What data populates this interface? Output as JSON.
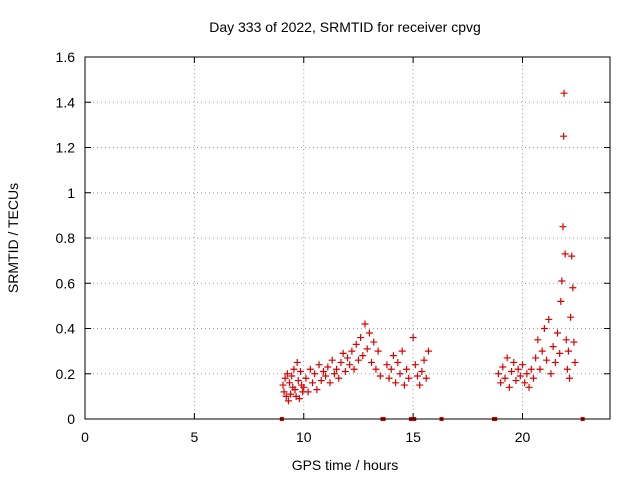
{
  "chart_data": {
    "type": "scatter",
    "title": "Day 333 of 2022, SRMTID for receiver cpvg",
    "xlabel": "GPS time / hours",
    "ylabel": "SRMTID / TECUs",
    "xlim": [
      0,
      24
    ],
    "ylim": [
      0,
      1.6
    ],
    "xticks": [
      0,
      5,
      10,
      15,
      20
    ],
    "yticks": [
      0,
      0.2,
      0.4,
      0.6,
      0.8,
      1,
      1.2,
      1.4,
      1.6
    ],
    "ytick_labels": [
      "0",
      "0.2",
      "0.4",
      "0.6",
      "0.8",
      "1",
      "1.2",
      "1.4",
      "1.6"
    ],
    "grid": true,
    "marker": "+",
    "series": [
      {
        "name": "SRMTID",
        "color": "#dd0000",
        "points": [
          [
            9.0,
            0.0
          ],
          [
            9.05,
            0.15
          ],
          [
            9.1,
            0.12
          ],
          [
            9.15,
            0.18
          ],
          [
            9.2,
            0.1
          ],
          [
            9.25,
            0.2
          ],
          [
            9.3,
            0.08
          ],
          [
            9.35,
            0.16
          ],
          [
            9.4,
            0.11
          ],
          [
            9.45,
            0.19
          ],
          [
            9.5,
            0.14
          ],
          [
            9.55,
            0.22
          ],
          [
            9.6,
            0.13
          ],
          [
            9.65,
            0.1
          ],
          [
            9.7,
            0.25
          ],
          [
            9.75,
            0.17
          ],
          [
            9.8,
            0.09
          ],
          [
            9.85,
            0.21
          ],
          [
            9.9,
            0.15
          ],
          [
            9.95,
            0.12
          ],
          [
            10.0,
            0.14
          ],
          [
            10.1,
            0.18
          ],
          [
            10.2,
            0.12
          ],
          [
            10.3,
            0.22
          ],
          [
            10.4,
            0.16
          ],
          [
            10.5,
            0.2
          ],
          [
            10.6,
            0.13
          ],
          [
            10.7,
            0.24
          ],
          [
            10.8,
            0.17
          ],
          [
            10.9,
            0.21
          ],
          [
            11.0,
            0.19
          ],
          [
            11.1,
            0.23
          ],
          [
            11.2,
            0.16
          ],
          [
            11.3,
            0.26
          ],
          [
            11.4,
            0.2
          ],
          [
            11.5,
            0.22
          ],
          [
            11.6,
            0.18
          ],
          [
            11.7,
            0.25
          ],
          [
            11.8,
            0.29
          ],
          [
            11.9,
            0.21
          ],
          [
            12.0,
            0.27
          ],
          [
            12.1,
            0.24
          ],
          [
            12.2,
            0.3
          ],
          [
            12.3,
            0.22
          ],
          [
            12.4,
            0.33
          ],
          [
            12.5,
            0.26
          ],
          [
            12.6,
            0.36
          ],
          [
            12.7,
            0.28
          ],
          [
            12.8,
            0.42
          ],
          [
            12.9,
            0.31
          ],
          [
            13.0,
            0.38
          ],
          [
            13.1,
            0.25
          ],
          [
            13.2,
            0.34
          ],
          [
            13.3,
            0.22
          ],
          [
            13.4,
            0.3
          ],
          [
            13.5,
            0.19
          ],
          [
            13.6,
            0.0
          ],
          [
            13.65,
            0.0
          ],
          [
            13.8,
            0.24
          ],
          [
            13.9,
            0.18
          ],
          [
            14.0,
            0.22
          ],
          [
            14.1,
            0.28
          ],
          [
            14.2,
            0.16
          ],
          [
            14.3,
            0.25
          ],
          [
            14.4,
            0.2
          ],
          [
            14.5,
            0.3
          ],
          [
            14.6,
            0.15
          ],
          [
            14.7,
            0.22
          ],
          [
            14.8,
            0.18
          ],
          [
            14.9,
            0.0
          ],
          [
            15.0,
            0.36
          ],
          [
            15.05,
            0.0
          ],
          [
            15.1,
            0.24
          ],
          [
            15.2,
            0.19
          ],
          [
            15.3,
            0.15
          ],
          [
            15.4,
            0.21
          ],
          [
            15.5,
            0.26
          ],
          [
            15.6,
            0.18
          ],
          [
            15.7,
            0.3
          ],
          [
            16.3,
            0.0
          ],
          [
            18.7,
            0.0
          ],
          [
            18.75,
            0.0
          ],
          [
            18.9,
            0.2
          ],
          [
            19.0,
            0.16
          ],
          [
            19.1,
            0.23
          ],
          [
            19.2,
            0.18
          ],
          [
            19.3,
            0.27
          ],
          [
            19.4,
            0.14
          ],
          [
            19.5,
            0.21
          ],
          [
            19.6,
            0.25
          ],
          [
            19.7,
            0.17
          ],
          [
            19.8,
            0.22
          ],
          [
            19.9,
            0.19
          ],
          [
            20.0,
            0.24
          ],
          [
            20.1,
            0.16
          ],
          [
            20.2,
            0.2
          ],
          [
            20.3,
            0.14
          ],
          [
            20.4,
            0.22
          ],
          [
            20.5,
            0.18
          ],
          [
            20.6,
            0.27
          ],
          [
            20.7,
            0.35
          ],
          [
            20.8,
            0.22
          ],
          [
            20.9,
            0.3
          ],
          [
            21.0,
            0.4
          ],
          [
            21.1,
            0.26
          ],
          [
            21.2,
            0.44
          ],
          [
            21.3,
            0.2
          ],
          [
            21.4,
            0.32
          ],
          [
            21.5,
            0.25
          ],
          [
            21.6,
            0.38
          ],
          [
            21.7,
            0.29
          ],
          [
            21.75,
            0.52
          ],
          [
            21.8,
            0.61
          ],
          [
            21.85,
            0.85
          ],
          [
            21.88,
            1.25
          ],
          [
            21.9,
            1.44
          ],
          [
            21.95,
            0.73
          ],
          [
            22.0,
            0.35
          ],
          [
            22.05,
            0.22
          ],
          [
            22.1,
            0.3
          ],
          [
            22.15,
            0.18
          ],
          [
            22.2,
            0.45
          ],
          [
            22.25,
            0.72
          ],
          [
            22.3,
            0.58
          ],
          [
            22.35,
            0.34
          ],
          [
            22.4,
            0.25
          ],
          [
            22.75,
            0.0
          ]
        ]
      }
    ]
  }
}
